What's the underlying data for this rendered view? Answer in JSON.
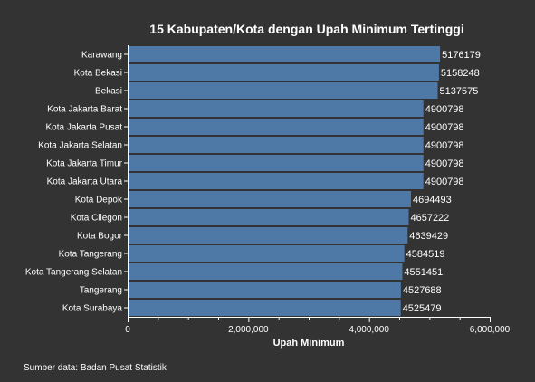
{
  "chart_data": {
    "type": "bar",
    "orientation": "horizontal",
    "title": "15 Kabupaten/Kota dengan Upah Minimum Tertinggi",
    "xlabel": "Upah Minimum",
    "ylabel": "",
    "xlim": [
      0,
      6000000
    ],
    "x_ticks": [
      "0",
      "2,000,000",
      "4,000,000",
      "6,000,000"
    ],
    "categories": [
      "Karawang",
      "Kota Bekasi",
      "Bekasi",
      "Kota Jakarta Barat",
      "Kota Jakarta Pusat",
      "Kota Jakarta Selatan",
      "Kota Jakarta Timur",
      "Kota Jakarta Utara",
      "Kota Depok",
      "Kota Cilegon",
      "Kota Bogor",
      "Kota Tangerang",
      "Kota Tangerang Selatan",
      "Tangerang",
      "Kota Surabaya"
    ],
    "values": [
      5176179,
      5158248,
      5137575,
      4900798,
      4900798,
      4900798,
      4900798,
      4900798,
      4694493,
      4657222,
      4639429,
      4584519,
      4551451,
      4527688,
      4525479
    ],
    "grid": false,
    "legend": "none",
    "colors": {
      "bar": "#4e79a7",
      "background": "#333333",
      "text": "#ffffff",
      "axis": "#ffffff"
    }
  },
  "footer": {
    "source": "Sumber data: Badan Pusat Statistik"
  }
}
